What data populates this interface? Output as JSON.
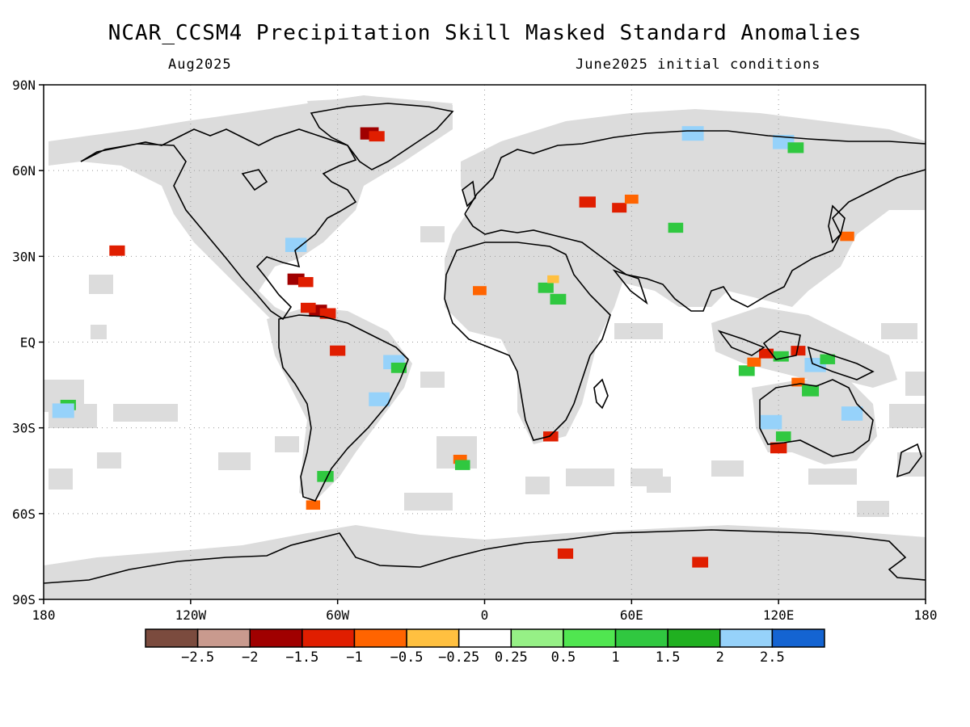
{
  "title": "NCAR_CCSM4 Precipitation Skill Masked Standard Anomalies",
  "subtitle_left": "Aug2025",
  "subtitle_right": "June2025 initial conditions",
  "axes": {
    "lat_labels": [
      "90N",
      "60N",
      "30N",
      "EQ",
      "30S",
      "60S",
      "90S"
    ],
    "lat_values": [
      90,
      60,
      30,
      0,
      -30,
      -60,
      -90
    ],
    "lon_labels": [
      "180",
      "120W",
      "60W",
      "0",
      "60E",
      "120E",
      "180"
    ],
    "lon_values": [
      -180,
      -120,
      -60,
      0,
      60,
      120,
      180
    ],
    "gridlines": "dotted"
  },
  "colors": {
    "mask_gray": "#dcdcdc",
    "coast": "#000000",
    "land_fill": "#ffffff"
  },
  "colorbar": {
    "labels": [
      "-2.5",
      "-2",
      "-1.5",
      "-1",
      "-0.5",
      "-0.25",
      "0.25",
      "0.5",
      "1",
      "1.5",
      "2",
      "2.5"
    ],
    "bins": [
      {
        "color": "#7b4b3e"
      },
      {
        "color": "#c99a8e"
      },
      {
        "color": "#a00000"
      },
      {
        "color": "#e01e00"
      },
      {
        "color": "#ff6400"
      },
      {
        "color": "#ffc040"
      },
      {
        "color": "#ffffff"
      },
      {
        "color": "#96f086"
      },
      {
        "color": "#50e650"
      },
      {
        "color": "#30c840"
      },
      {
        "color": "#20b020"
      },
      {
        "color": "#96d2fa"
      },
      {
        "color": "#1464d2"
      }
    ]
  },
  "anomalies": [
    {
      "lat": 73,
      "lon": -47,
      "val": -1.8
    },
    {
      "lat": 72,
      "lon": -44,
      "val": -1.2
    },
    {
      "lat": 22,
      "lon": -77,
      "val": -1.5
    },
    {
      "lat": 21,
      "lon": -73,
      "val": -1.1
    },
    {
      "lat": 11,
      "lon": -68,
      "val": -1.7
    },
    {
      "lat": 10,
      "lon": -64,
      "val": -1.3
    },
    {
      "lat": 12,
      "lon": -72,
      "val": -1.1
    },
    {
      "lat": -3,
      "lon": -60,
      "val": -1.2
    },
    {
      "lat": -7,
      "lon": -37,
      "val": 2.4
    },
    {
      "lat": -9,
      "lon": -35,
      "val": 1.2
    },
    {
      "lat": -20,
      "lon": -43,
      "val": 2.3
    },
    {
      "lat": -22,
      "lon": -170,
      "val": 1.2
    },
    {
      "lat": -24,
      "lon": -172,
      "val": 2.5
    },
    {
      "lat": 32,
      "lon": -150,
      "val": -1.2
    },
    {
      "lat": 34,
      "lon": -77,
      "val": 2.4
    },
    {
      "lat": -41,
      "lon": -10,
      "val": -0.8
    },
    {
      "lat": -43,
      "lon": -9,
      "val": 1.1
    },
    {
      "lat": -47,
      "lon": -65,
      "val": 1.4
    },
    {
      "lat": -57,
      "lon": -70,
      "val": -0.9
    },
    {
      "lat": 18,
      "lon": -2,
      "val": -0.8
    },
    {
      "lat": 15,
      "lon": 30,
      "val": 1.3
    },
    {
      "lat": 19,
      "lon": 25,
      "val": 1.2
    },
    {
      "lat": 22,
      "lon": 28,
      "val": -0.4
    },
    {
      "lat": -33,
      "lon": 27,
      "val": -1.1
    },
    {
      "lat": -10,
      "lon": 107,
      "val": 1.3
    },
    {
      "lat": -7,
      "lon": 110,
      "val": -0.8
    },
    {
      "lat": -4,
      "lon": 115,
      "val": -1.0
    },
    {
      "lat": -5,
      "lon": 121,
      "val": 1.2
    },
    {
      "lat": -3,
      "lon": 128,
      "val": -1.0
    },
    {
      "lat": -8,
      "lon": 135,
      "val": 2.4
    },
    {
      "lat": -6,
      "lon": 140,
      "val": 1.1
    },
    {
      "lat": -14,
      "lon": 128,
      "val": -0.7
    },
    {
      "lat": -17,
      "lon": 133,
      "val": 1.5
    },
    {
      "lat": -28,
      "lon": 117,
      "val": 2.4
    },
    {
      "lat": -33,
      "lon": 122,
      "val": 1.1
    },
    {
      "lat": -37,
      "lon": 120,
      "val": -1.4
    },
    {
      "lat": -25,
      "lon": 150,
      "val": 2.4
    },
    {
      "lat": 37,
      "lon": 148,
      "val": -0.9
    },
    {
      "lat": 70,
      "lon": 122,
      "val": 2.4
    },
    {
      "lat": 68,
      "lon": 127,
      "val": 1.3
    },
    {
      "lat": 73,
      "lon": 85,
      "val": 2.5
    },
    {
      "lat": 40,
      "lon": 78,
      "val": 1.1
    },
    {
      "lat": 49,
      "lon": 42,
      "val": -1.4
    },
    {
      "lat": 47,
      "lon": 55,
      "val": -1.0
    },
    {
      "lat": 50,
      "lon": 60,
      "val": -0.8
    },
    {
      "lat": -74,
      "lon": 33,
      "val": -1.2
    },
    {
      "lat": -77,
      "lon": 88,
      "val": -1.3
    }
  ]
}
